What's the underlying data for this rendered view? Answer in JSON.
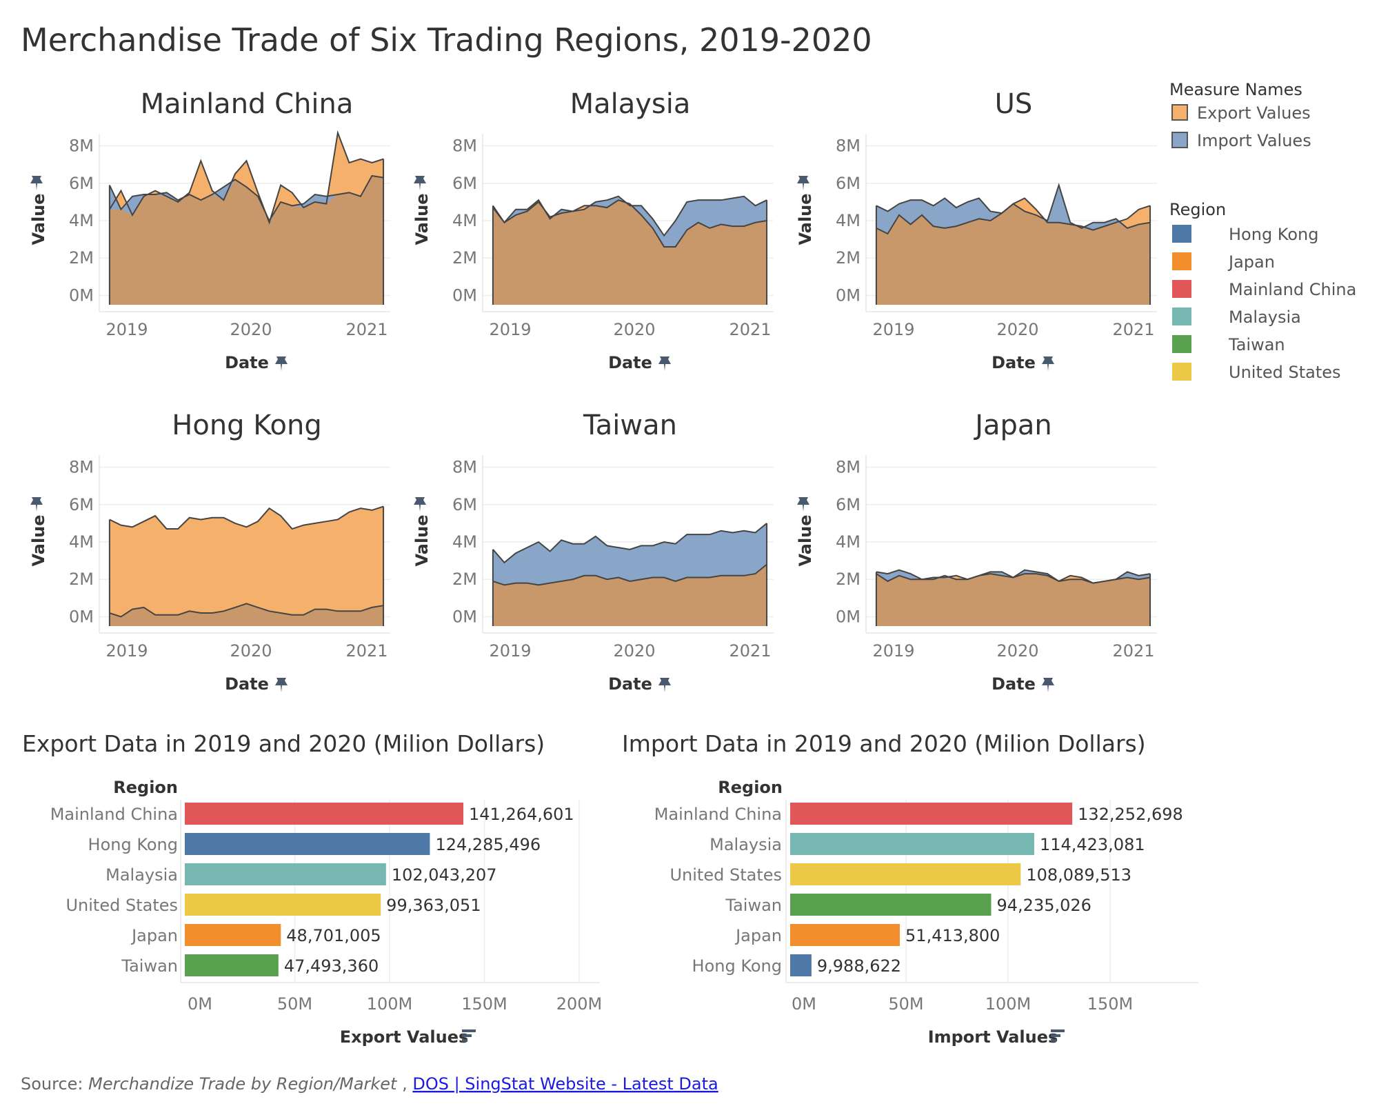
{
  "title": "Merchandise Trade of Six Trading Regions, 2019-2020",
  "colors": {
    "export_fill": "#f5b06c",
    "import_fill": "#89a6c9",
    "overlap_fill": "#c9986a",
    "region": {
      "Hong Kong": "#4e79a7",
      "Japan": "#f28e2b",
      "Mainland China": "#e15759",
      "Malaysia": "#76b7b2",
      "Taiwan": "#59a14f",
      "United States": "#edc948"
    }
  },
  "legend": {
    "measure_title": "Measure Names",
    "measures": [
      "Export Values",
      "Import Values"
    ],
    "region_title": "Region",
    "regions": [
      "Hong Kong",
      "Japan",
      "Mainland China",
      "Malaysia",
      "Taiwan",
      "United States"
    ]
  },
  "small_multiples_axes": {
    "y_label": "Value",
    "x_label": "Date",
    "y_ticks": [
      "0M",
      "2M",
      "4M",
      "6M",
      "8M"
    ],
    "x_ticks": [
      "2019",
      "2020",
      "2021"
    ]
  },
  "chart_data": [
    {
      "type": "area",
      "title": "Mainland China",
      "xlabel": "Date",
      "ylabel": "Value",
      "x": [
        "2019-01",
        "2019-02",
        "2019-03",
        "2019-04",
        "2019-05",
        "2019-06",
        "2019-07",
        "2019-08",
        "2019-09",
        "2019-10",
        "2019-11",
        "2019-12",
        "2020-01",
        "2020-02",
        "2020-03",
        "2020-04",
        "2020-05",
        "2020-06",
        "2020-07",
        "2020-08",
        "2020-09",
        "2020-10",
        "2020-11",
        "2020-12",
        "2021-01"
      ],
      "ylim": [
        -0.5,
        8.5
      ],
      "series": [
        {
          "name": "Export Values",
          "values": [
            4.6,
            5.6,
            4.3,
            5.3,
            5.6,
            5.3,
            5.0,
            5.5,
            7.2,
            5.6,
            5.1,
            6.5,
            7.2,
            5.5,
            3.9,
            5.9,
            5.5,
            4.7,
            5.0,
            4.9,
            8.7,
            7.1,
            7.3,
            7.1,
            7.3
          ]
        },
        {
          "name": "Import Values",
          "values": [
            5.9,
            4.6,
            5.3,
            5.4,
            5.4,
            5.5,
            5.1,
            5.4,
            5.1,
            5.4,
            5.8,
            6.2,
            5.8,
            5.3,
            4.0,
            5.0,
            4.8,
            4.9,
            5.4,
            5.3,
            5.4,
            5.5,
            5.3,
            6.4,
            6.3
          ]
        }
      ]
    },
    {
      "type": "area",
      "title": "Malaysia",
      "xlabel": "Date",
      "ylabel": "Value",
      "x": [
        "2019-01",
        "2019-02",
        "2019-03",
        "2019-04",
        "2019-05",
        "2019-06",
        "2019-07",
        "2019-08",
        "2019-09",
        "2019-10",
        "2019-11",
        "2019-12",
        "2020-01",
        "2020-02",
        "2020-03",
        "2020-04",
        "2020-05",
        "2020-06",
        "2020-07",
        "2020-08",
        "2020-09",
        "2020-10",
        "2020-11",
        "2020-12",
        "2021-01"
      ],
      "ylim": [
        -0.5,
        8.5
      ],
      "series": [
        {
          "name": "Export Values",
          "values": [
            4.7,
            3.9,
            4.3,
            4.5,
            5.0,
            4.2,
            4.4,
            4.5,
            4.8,
            4.8,
            4.7,
            5.1,
            4.9,
            4.3,
            3.6,
            2.6,
            2.6,
            3.5,
            3.9,
            3.6,
            3.8,
            3.7,
            3.7,
            3.9,
            4.0
          ]
        },
        {
          "name": "Import Values",
          "values": [
            4.8,
            3.9,
            4.6,
            4.6,
            5.1,
            4.1,
            4.6,
            4.5,
            4.6,
            5.0,
            5.1,
            5.3,
            4.8,
            4.8,
            4.1,
            3.2,
            4.0,
            5.0,
            5.1,
            5.1,
            5.1,
            5.2,
            5.3,
            4.8,
            5.1
          ]
        }
      ]
    },
    {
      "type": "area",
      "title": "US",
      "xlabel": "Date",
      "ylabel": "Value",
      "x": [
        "2019-01",
        "2019-02",
        "2019-03",
        "2019-04",
        "2019-05",
        "2019-06",
        "2019-07",
        "2019-08",
        "2019-09",
        "2019-10",
        "2019-11",
        "2019-12",
        "2020-01",
        "2020-02",
        "2020-03",
        "2020-04",
        "2020-05",
        "2020-06",
        "2020-07",
        "2020-08",
        "2020-09",
        "2020-10",
        "2020-11",
        "2020-12",
        "2021-01"
      ],
      "ylim": [
        -0.5,
        8.5
      ],
      "series": [
        {
          "name": "Export Values",
          "values": [
            3.6,
            3.3,
            4.3,
            3.8,
            4.3,
            3.7,
            3.6,
            3.7,
            3.9,
            4.1,
            4.0,
            4.4,
            4.9,
            5.2,
            4.6,
            3.9,
            3.9,
            3.8,
            3.7,
            3.5,
            3.7,
            3.9,
            4.1,
            4.6,
            4.8
          ]
        },
        {
          "name": "Import Values",
          "values": [
            4.8,
            4.5,
            4.9,
            5.1,
            5.1,
            4.8,
            5.2,
            4.7,
            5.0,
            5.2,
            4.5,
            4.4,
            4.9,
            4.5,
            4.3,
            4.0,
            5.9,
            3.9,
            3.6,
            3.9,
            3.9,
            4.1,
            3.6,
            3.8,
            3.9
          ]
        }
      ]
    },
    {
      "type": "area",
      "title": "Hong Kong",
      "xlabel": "Date",
      "ylabel": "Value",
      "x": [
        "2019-01",
        "2019-02",
        "2019-03",
        "2019-04",
        "2019-05",
        "2019-06",
        "2019-07",
        "2019-08",
        "2019-09",
        "2019-10",
        "2019-11",
        "2019-12",
        "2020-01",
        "2020-02",
        "2020-03",
        "2020-04",
        "2020-05",
        "2020-06",
        "2020-07",
        "2020-08",
        "2020-09",
        "2020-10",
        "2020-11",
        "2020-12",
        "2021-01"
      ],
      "ylim": [
        -0.5,
        8.5
      ],
      "series": [
        {
          "name": "Export Values",
          "values": [
            5.2,
            4.9,
            4.8,
            5.1,
            5.4,
            4.7,
            4.7,
            5.3,
            5.2,
            5.3,
            5.3,
            5.0,
            4.8,
            5.1,
            5.8,
            5.4,
            4.7,
            4.9,
            5.0,
            5.1,
            5.2,
            5.6,
            5.8,
            5.7,
            5.9
          ]
        },
        {
          "name": "Import Values",
          "values": [
            0.2,
            0.0,
            0.4,
            0.5,
            0.1,
            0.1,
            0.1,
            0.3,
            0.2,
            0.2,
            0.3,
            0.5,
            0.7,
            0.5,
            0.3,
            0.2,
            0.1,
            0.1,
            0.4,
            0.4,
            0.3,
            0.3,
            0.3,
            0.5,
            0.6
          ]
        }
      ]
    },
    {
      "type": "area",
      "title": "Taiwan",
      "xlabel": "Date",
      "ylabel": "Value",
      "x": [
        "2019-01",
        "2019-02",
        "2019-03",
        "2019-04",
        "2019-05",
        "2019-06",
        "2019-07",
        "2019-08",
        "2019-09",
        "2019-10",
        "2019-11",
        "2019-12",
        "2020-01",
        "2020-02",
        "2020-03",
        "2020-04",
        "2020-05",
        "2020-06",
        "2020-07",
        "2020-08",
        "2020-09",
        "2020-10",
        "2020-11",
        "2020-12",
        "2021-01"
      ],
      "ylim": [
        -0.5,
        8.5
      ],
      "series": [
        {
          "name": "Export Values",
          "values": [
            1.9,
            1.7,
            1.8,
            1.8,
            1.7,
            1.8,
            1.9,
            2.0,
            2.2,
            2.2,
            2.0,
            2.1,
            1.9,
            2.0,
            2.1,
            2.1,
            1.9,
            2.1,
            2.1,
            2.1,
            2.2,
            2.2,
            2.2,
            2.3,
            2.8
          ]
        },
        {
          "name": "Import Values",
          "values": [
            3.6,
            2.9,
            3.4,
            3.7,
            4.0,
            3.5,
            4.1,
            3.9,
            3.9,
            4.3,
            3.8,
            3.7,
            3.6,
            3.8,
            3.8,
            4.0,
            3.9,
            4.4,
            4.4,
            4.4,
            4.6,
            4.5,
            4.6,
            4.5,
            5.0
          ]
        }
      ]
    },
    {
      "type": "area",
      "title": "Japan",
      "xlabel": "Date",
      "ylabel": "Value",
      "x": [
        "2019-01",
        "2019-02",
        "2019-03",
        "2019-04",
        "2019-05",
        "2019-06",
        "2019-07",
        "2019-08",
        "2019-09",
        "2019-10",
        "2019-11",
        "2019-12",
        "2020-01",
        "2020-02",
        "2020-03",
        "2020-04",
        "2020-05",
        "2020-06",
        "2020-07",
        "2020-08",
        "2020-09",
        "2020-10",
        "2020-11",
        "2020-12",
        "2021-01"
      ],
      "ylim": [
        -0.5,
        8.5
      ],
      "series": [
        {
          "name": "Export Values",
          "values": [
            2.3,
            1.9,
            2.2,
            2.0,
            2.0,
            2.1,
            2.1,
            2.2,
            2.0,
            2.2,
            2.3,
            2.2,
            2.1,
            2.3,
            2.3,
            2.2,
            1.9,
            2.2,
            2.1,
            1.8,
            1.9,
            2.0,
            2.1,
            2.0,
            2.1
          ]
        },
        {
          "name": "Import Values",
          "values": [
            2.4,
            2.3,
            2.5,
            2.3,
            2.0,
            2.0,
            2.2,
            2.0,
            2.0,
            2.2,
            2.4,
            2.4,
            2.1,
            2.5,
            2.4,
            2.3,
            1.9,
            2.0,
            2.0,
            1.8,
            1.9,
            2.0,
            2.4,
            2.2,
            2.3
          ]
        }
      ]
    },
    {
      "type": "bar",
      "title": "Export Data in 2019 and 2020 (Milion Dollars)",
      "category_header": "Region",
      "xlabel": "Export Values",
      "categories": [
        "Mainland China",
        "Hong Kong",
        "Malaysia",
        "United States",
        "Japan",
        "Taiwan"
      ],
      "values": [
        141264601,
        124285496,
        102043207,
        99363051,
        48701005,
        47493360
      ],
      "labels": [
        "141,264,601",
        "124,285,496",
        "102,043,207",
        "99,363,051",
        "48,701,005",
        "47,493,360"
      ],
      "tick_labels": [
        "0M",
        "50M",
        "100M",
        "150M",
        "200M"
      ],
      "tick_values": [
        0,
        50000000,
        100000000,
        150000000,
        200000000
      ],
      "xlim": [
        0,
        200000000
      ]
    },
    {
      "type": "bar",
      "title": "Import Data in 2019 and 2020 (Milion Dollars)",
      "category_header": "Region",
      "xlabel": "Import Values",
      "categories": [
        "Mainland China",
        "Malaysia",
        "United States",
        "Taiwan",
        "Japan",
        "Hong Kong"
      ],
      "values": [
        132252698,
        114423081,
        108089513,
        94235026,
        51413800,
        9988622
      ],
      "labels": [
        "132,252,698",
        "114,423,081",
        "108,089,513",
        "94,235,026",
        "51,413,800",
        "9,988,622"
      ],
      "tick_labels": [
        "0M",
        "50M",
        "100M",
        "150M"
      ],
      "tick_values": [
        0,
        50000000,
        100000000,
        150000000
      ],
      "xlim": [
        0,
        190000000
      ]
    }
  ],
  "source": {
    "prefix": "Source: ",
    "italic": "Merchandize Trade by Region/Market",
    "separator": " , ",
    "link_text": "DOS | SingStat Website - Latest Data"
  }
}
